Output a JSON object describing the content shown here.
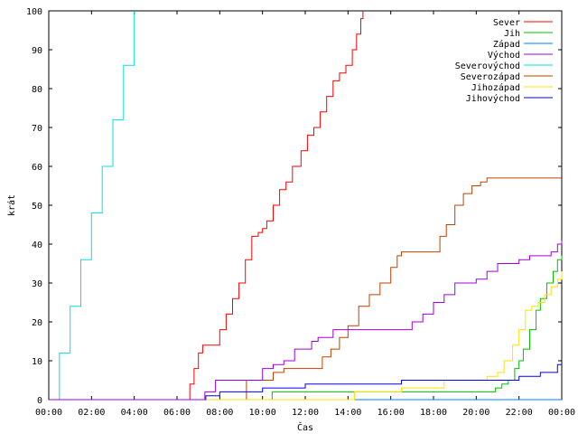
{
  "chart_data": {
    "type": "line",
    "xlabel": "Čas",
    "ylabel": "krát",
    "xlim": [
      0,
      24
    ],
    "ylim": [
      0,
      100
    ],
    "x_ticks": [
      "00:00",
      "02:00",
      "04:00",
      "06:00",
      "08:00",
      "10:00",
      "12:00",
      "14:00",
      "16:00",
      "18:00",
      "20:00",
      "22:00",
      "00:00"
    ],
    "y_ticks": [
      "0",
      "10",
      "20",
      "30",
      "40",
      "50",
      "60",
      "70",
      "80",
      "90",
      "100"
    ],
    "grid": false,
    "legend_position": "top-right",
    "series": [
      {
        "name": "Sever",
        "color": "#ff0000",
        "x": [
          0,
          6.5,
          6.6,
          6.8,
          7.0,
          7.2,
          7.4,
          7.7,
          8.0,
          8.3,
          8.6,
          8.9,
          9.2,
          9.5,
          9.8,
          10.0,
          10.2,
          10.5,
          10.8,
          11.1,
          11.4,
          11.8,
          12.1,
          12.4,
          12.7,
          13.0,
          13.3,
          13.6,
          13.9,
          14.2,
          14.4,
          14.6,
          14.7
        ],
        "y": [
          0,
          0,
          4,
          8,
          12,
          14,
          14,
          14,
          18,
          22,
          26,
          30,
          36,
          42,
          43,
          44,
          46,
          50,
          54,
          56,
          60,
          64,
          68,
          70,
          74,
          78,
          82,
          84,
          86,
          90,
          94,
          98,
          100
        ]
      },
      {
        "name": "Jih",
        "color": "#00c000",
        "x": [
          0,
          10.4,
          10.45,
          14.0,
          14.05,
          20.8,
          20.9,
          21.0,
          21.2,
          21.5,
          21.8,
          22.0,
          22.2,
          22.5,
          22.8,
          23.0,
          23.3,
          23.6,
          23.8,
          24.0
        ],
        "y": [
          0,
          0,
          2,
          2,
          2,
          2,
          3,
          3,
          4,
          5,
          8,
          10,
          13,
          18,
          23,
          26,
          30,
          33,
          36,
          37
        ]
      },
      {
        "name": "Západ",
        "color": "#0080ff",
        "x": [
          0,
          24
        ],
        "y": [
          0,
          0
        ]
      },
      {
        "name": "Severovýchod",
        "color": "#00e0e0",
        "x": [
          0,
          0.5,
          1.0,
          1.5,
          2.0,
          2.5,
          3.0,
          3.5,
          4.0
        ],
        "y": [
          0,
          12,
          24,
          36,
          48,
          60,
          72,
          86,
          100
        ]
      },
      {
        "name": "Severozápad",
        "color": "#c04000",
        "x": [
          0,
          9.2,
          9.25,
          10.0,
          10.5,
          11.0,
          12.5,
          12.8,
          13.2,
          13.6,
          14.0,
          14.5,
          15.0,
          15.5,
          16.0,
          16.3,
          16.5,
          18.0,
          18.3,
          18.6,
          19.0,
          19.4,
          19.8,
          20.2,
          20.5,
          20.8,
          24.0
        ],
        "y": [
          0,
          0,
          5,
          5,
          7,
          8,
          8,
          11,
          13,
          16,
          19,
          24,
          27,
          30,
          34,
          37,
          38,
          38,
          42,
          45,
          50,
          53,
          55,
          56,
          57,
          57,
          57
        ]
      },
      {
        "name": "Jihozápad",
        "color": "#ffe000",
        "x": [
          0,
          14.0,
          14.3,
          15.5,
          16.5,
          18.5,
          20.5,
          21.0,
          21.3,
          21.7,
          22.0,
          22.3,
          22.6,
          22.9,
          23.2,
          23.5,
          23.8,
          24.0
        ],
        "y": [
          0,
          0,
          2,
          2,
          3,
          5,
          6,
          7,
          10,
          14,
          18,
          23,
          24,
          25,
          27,
          29,
          31,
          33
        ]
      },
      {
        "name": "Jihovýchod",
        "color": "#0000ff",
        "x": [
          0,
          7.3,
          7.35,
          8.0,
          10.0,
          12.0,
          16.5,
          18.0,
          20.0,
          22.0,
          23.0,
          23.8,
          24.0
        ],
        "y": [
          0,
          0,
          1,
          2,
          3,
          4,
          5,
          5,
          5,
          6,
          7,
          9,
          9
        ]
      },
      {
        "name": "Východ",
        "color": "#a000e0",
        "x": [
          0,
          7.0,
          7.3,
          7.8,
          8.5,
          9.5,
          10.0,
          10.5,
          11.0,
          11.5,
          12.0,
          12.3,
          12.6,
          13.0,
          13.3,
          13.6,
          14.0,
          15.0,
          16.0,
          17.0,
          17.5,
          18.0,
          18.5,
          19.0,
          19.5,
          20.0,
          20.5,
          21.0,
          21.5,
          22.0,
          22.5,
          23.0,
          23.5,
          23.8,
          24.0
        ],
        "y": [
          0,
          0,
          2,
          5,
          5,
          5,
          8,
          9,
          10,
          13,
          13,
          15,
          16,
          16,
          18,
          18,
          18,
          18,
          18,
          20,
          22,
          25,
          27,
          30,
          30,
          31,
          33,
          35,
          35,
          36,
          37,
          37,
          38,
          40,
          41
        ]
      }
    ],
    "legend_order": [
      "Sever",
      "Jih",
      "Západ",
      "Východ",
      "Severovýchod",
      "Severozápad",
      "Jihozápad",
      "Jihovýchod"
    ]
  }
}
